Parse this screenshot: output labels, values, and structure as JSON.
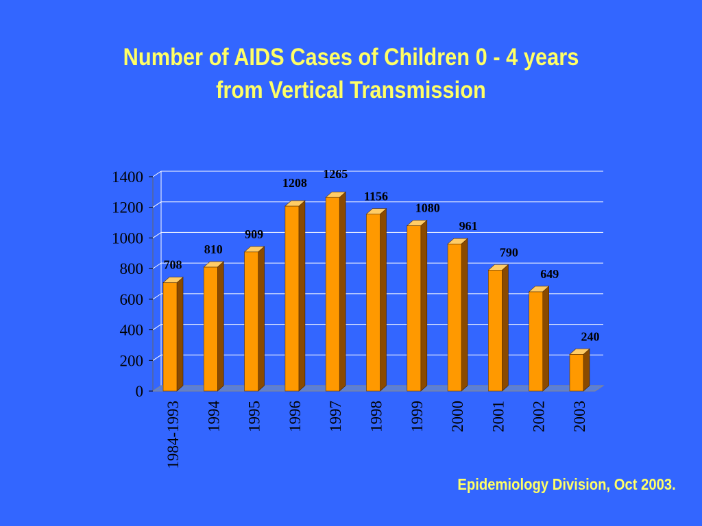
{
  "chart_data": {
    "type": "bar",
    "title": "Number of AIDS Cases of Children 0 - 4 years from Vertical Transmission",
    "title_lines": [
      "Number of AIDS Cases of Children 0 - 4 years",
      "from Vertical Transmission"
    ],
    "categories": [
      "1984-1993",
      "1994",
      "1995",
      "1996",
      "1997",
      "1998",
      "1999",
      "2000",
      "2001",
      "2002",
      "2003"
    ],
    "values": [
      708,
      810,
      909,
      1208,
      1265,
      1156,
      1080,
      961,
      790,
      649,
      240
    ],
    "data_labels": [
      "708",
      "810",
      "909",
      "1208",
      "1265",
      "1156",
      "1080",
      "961",
      "790",
      "649",
      "240"
    ],
    "yticks": [
      "0",
      "200",
      "400",
      "600",
      "800",
      "1000",
      "1200",
      "1400"
    ],
    "ylim": [
      0,
      1400
    ],
    "grid": true,
    "legend": "none",
    "colors": {
      "background": "#3366ff",
      "title": "#ffff66",
      "bar_front": "#ff9900",
      "bar_side": "#8a4a00",
      "bar_top": "#ffcc66",
      "grid": "#ffffff"
    }
  },
  "footer": {
    "source": "Epidemiology Division, Oct 2003."
  }
}
